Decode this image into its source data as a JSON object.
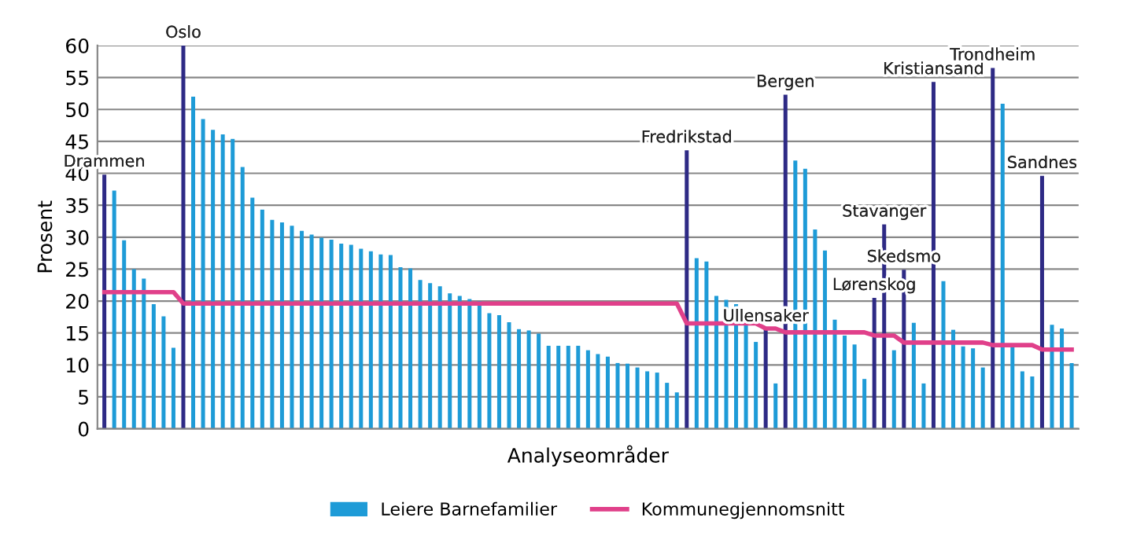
{
  "chart_data": {
    "type": "bar",
    "ylabel": "Prosent",
    "xlabel": "Analyseområder",
    "categories": [
      null,
      null,
      null,
      null,
      null,
      null,
      null,
      null,
      null,
      null,
      null,
      null,
      null,
      null,
      null,
      null,
      null,
      null,
      null,
      null,
      null,
      null,
      null,
      null,
      null,
      null,
      null,
      null,
      null,
      null,
      null,
      null,
      null,
      null,
      null,
      null,
      null,
      null,
      null,
      null,
      null,
      null,
      null,
      null,
      null,
      null,
      null,
      null,
      null,
      null,
      null,
      null,
      null,
      null,
      null,
      null,
      null,
      null,
      null,
      null,
      null,
      null,
      null,
      null,
      null,
      null,
      null,
      null,
      null,
      null,
      null,
      null,
      null,
      null,
      null,
      null,
      null,
      null,
      null,
      null,
      null,
      null,
      null,
      null,
      null,
      null,
      null,
      null,
      null,
      null,
      null,
      null,
      null,
      null,
      null,
      null,
      null,
      null,
      null
    ],
    "series": [
      {
        "name": "Leiere Barnefamilier",
        "color": "#1e9bd7",
        "values": [
          39.8,
          37.3,
          29.5,
          25.0,
          23.5,
          19.5,
          17.6,
          12.7,
          60,
          52.0,
          48.5,
          46.8,
          46.1,
          45.4,
          41.0,
          36.2,
          34.3,
          32.7,
          32.3,
          31.8,
          31.0,
          30.4,
          29.9,
          29.6,
          29.0,
          28.8,
          28.2,
          27.8,
          27.3,
          27.2,
          25.3,
          25.1,
          23.3,
          22.8,
          22.3,
          21.2,
          20.8,
          20.3,
          20.0,
          18.1,
          17.8,
          16.7,
          15.6,
          15.4,
          14.9,
          13.0,
          13.0,
          13.0,
          13.0,
          12.3,
          11.7,
          11.3,
          10.3,
          10.2,
          9.6,
          9.0,
          8.8,
          7.2,
          5.7,
          43.6,
          26.7,
          26.2,
          20.8,
          20.2,
          19.5,
          16.8,
          13.6,
          15.6,
          7.1,
          52.3,
          42.0,
          40.7,
          31.2,
          27.9,
          17.1,
          14.6,
          13.2,
          7.8,
          20.5,
          32.0,
          12.3,
          24.9,
          16.6,
          7.1,
          54.3,
          23.1,
          15.5,
          12.9,
          12.6,
          9.6,
          56.5,
          50.9,
          12.9,
          9.0,
          8.2,
          39.6,
          16.3,
          15.7,
          10.3
        ],
        "colors": [
          "#2e2a85",
          "#1e9bd7",
          "#1e9bd7",
          "#1e9bd7",
          "#1e9bd7",
          "#1e9bd7",
          "#1e9bd7",
          "#1e9bd7",
          "#2e2a85",
          "#1e9bd7",
          "#1e9bd7",
          "#1e9bd7",
          "#1e9bd7",
          "#1e9bd7",
          "#1e9bd7",
          "#1e9bd7",
          "#1e9bd7",
          "#1e9bd7",
          "#1e9bd7",
          "#1e9bd7",
          "#1e9bd7",
          "#1e9bd7",
          "#1e9bd7",
          "#1e9bd7",
          "#1e9bd7",
          "#1e9bd7",
          "#1e9bd7",
          "#1e9bd7",
          "#1e9bd7",
          "#1e9bd7",
          "#1e9bd7",
          "#1e9bd7",
          "#1e9bd7",
          "#1e9bd7",
          "#1e9bd7",
          "#1e9bd7",
          "#1e9bd7",
          "#1e9bd7",
          "#1e9bd7",
          "#1e9bd7",
          "#1e9bd7",
          "#1e9bd7",
          "#1e9bd7",
          "#1e9bd7",
          "#1e9bd7",
          "#1e9bd7",
          "#1e9bd7",
          "#1e9bd7",
          "#1e9bd7",
          "#1e9bd7",
          "#1e9bd7",
          "#1e9bd7",
          "#1e9bd7",
          "#1e9bd7",
          "#1e9bd7",
          "#1e9bd7",
          "#1e9bd7",
          "#1e9bd7",
          "#1e9bd7",
          "#2e2a85",
          "#1e9bd7",
          "#1e9bd7",
          "#1e9bd7",
          "#1e9bd7",
          "#1e9bd7",
          "#1e9bd7",
          "#1e9bd7",
          "#2e2a85",
          "#1e9bd7",
          "#2e2a85",
          "#1e9bd7",
          "#1e9bd7",
          "#1e9bd7",
          "#1e9bd7",
          "#1e9bd7",
          "#1e9bd7",
          "#1e9bd7",
          "#1e9bd7",
          "#2e2a85",
          "#2e2a85",
          "#1e9bd7",
          "#2e2a85",
          "#1e9bd7",
          "#1e9bd7",
          "#2e2a85",
          "#1e9bd7",
          "#1e9bd7",
          "#1e9bd7",
          "#1e9bd7",
          "#1e9bd7",
          "#2e2a85",
          "#1e9bd7",
          "#1e9bd7",
          "#1e9bd7",
          "#1e9bd7",
          "#2e2a85",
          "#1e9bd7",
          "#1e9bd7",
          "#1e9bd7"
        ],
        "value_labels": [
          "Drammen",
          null,
          null,
          null,
          null,
          null,
          null,
          null,
          "Oslo",
          null,
          null,
          null,
          null,
          null,
          null,
          null,
          null,
          null,
          null,
          null,
          null,
          null,
          null,
          null,
          null,
          null,
          null,
          null,
          null,
          null,
          null,
          null,
          null,
          null,
          null,
          null,
          null,
          null,
          null,
          null,
          null,
          null,
          null,
          null,
          null,
          null,
          null,
          null,
          null,
          null,
          null,
          null,
          null,
          null,
          null,
          null,
          null,
          null,
          null,
          "Fredrikstad",
          null,
          null,
          null,
          null,
          null,
          null,
          null,
          "Ullensaker",
          null,
          "Bergen",
          null,
          null,
          null,
          null,
          null,
          null,
          null,
          null,
          "Lørenskog",
          "Stavanger",
          null,
          "Skedsmo",
          null,
          null,
          "Kristiansand",
          null,
          null,
          null,
          null,
          null,
          "Trondheim",
          null,
          null,
          null,
          null,
          "Sandnes",
          null,
          null,
          null
        ]
      },
      {
        "name": "Kommunegjennomsnitt",
        "type": "line",
        "color": "#e0408a",
        "values": [
          21.4,
          21.4,
          21.4,
          21.4,
          21.4,
          21.4,
          21.4,
          21.4,
          19.6,
          19.6,
          19.6,
          19.6,
          19.6,
          19.6,
          19.6,
          19.6,
          19.6,
          19.6,
          19.6,
          19.6,
          19.6,
          19.6,
          19.6,
          19.6,
          19.6,
          19.6,
          19.6,
          19.6,
          19.6,
          19.6,
          19.6,
          19.6,
          19.6,
          19.6,
          19.6,
          19.6,
          19.6,
          19.6,
          19.6,
          19.6,
          19.6,
          19.6,
          19.6,
          19.6,
          19.6,
          19.6,
          19.6,
          19.6,
          19.6,
          19.6,
          19.6,
          19.6,
          19.6,
          19.6,
          19.6,
          19.6,
          19.6,
          19.6,
          19.6,
          16.5,
          16.5,
          16.5,
          16.5,
          16.5,
          16.5,
          16.5,
          16.5,
          15.7,
          15.7,
          15.1,
          15.1,
          15.1,
          15.1,
          15.1,
          15.1,
          15.1,
          15.1,
          15.1,
          14.6,
          14.6,
          14.6,
          13.5,
          13.5,
          13.5,
          13.5,
          13.5,
          13.5,
          13.5,
          13.5,
          13.5,
          13.1,
          13.1,
          13.1,
          13.1,
          13.1,
          12.4,
          12.4,
          12.4,
          12.4
        ]
      }
    ],
    "ylim": [
      0,
      60
    ],
    "yticks": [
      0,
      5,
      10,
      15,
      20,
      25,
      30,
      35,
      40,
      45,
      50,
      55,
      60
    ],
    "grid": "y",
    "legend": "bottom"
  }
}
